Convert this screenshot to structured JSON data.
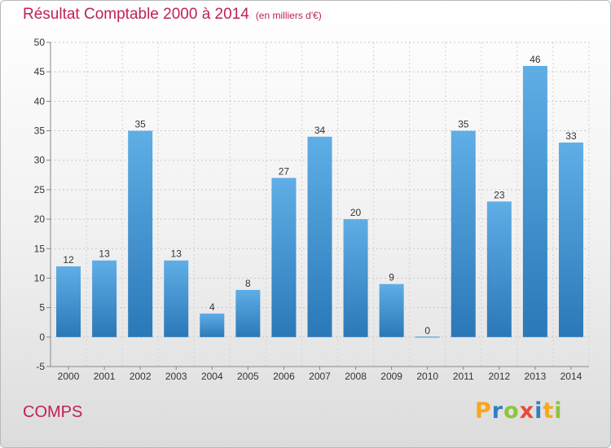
{
  "header": {
    "title": "Résultat Comptable 2000 à 2014",
    "unit": "(en milliers d'€)"
  },
  "footer": {
    "commune": "COMPS",
    "logo": {
      "text": "Proxiti",
      "letters": [
        {
          "ch": "P",
          "color": "#f7a71b"
        },
        {
          "ch": "r",
          "color": "#2e7fc6"
        },
        {
          "ch": "o",
          "color": "#8fc33c"
        },
        {
          "ch": "x",
          "color": "#e84b3c"
        },
        {
          "ch": "i",
          "color": "#2e7fc6"
        },
        {
          "ch": "t",
          "color": "#f7a71b"
        },
        {
          "ch": "i",
          "color": "#8fc33c"
        }
      ]
    }
  },
  "colors": {
    "accent": "#c0205a",
    "bar_top": "#5faee6",
    "bar_bottom": "#2b78b8"
  },
  "chart_data": {
    "type": "bar",
    "title": "Résultat Comptable 2000 à 2014",
    "subtitle": "(en milliers d'€)",
    "categories": [
      "2000",
      "2001",
      "2002",
      "2003",
      "2004",
      "2005",
      "2006",
      "2007",
      "2008",
      "2009",
      "2010",
      "2011",
      "2012",
      "2013",
      "2014"
    ],
    "values": [
      12,
      13,
      35,
      13,
      4,
      8,
      27,
      34,
      20,
      9,
      0,
      35,
      23,
      46,
      33
    ],
    "ylim": [
      -5,
      50
    ],
    "yticks": [
      -5,
      0,
      5,
      10,
      15,
      20,
      25,
      30,
      35,
      40,
      45,
      50
    ],
    "grid": "horizontal-dashed",
    "data_labels": true
  }
}
